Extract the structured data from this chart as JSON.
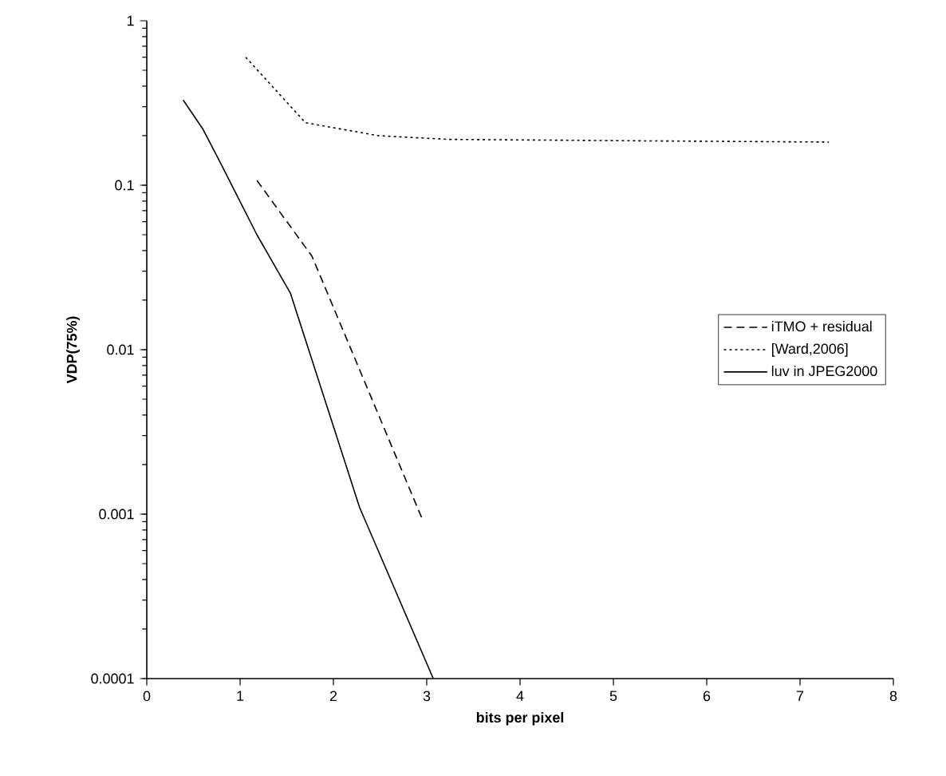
{
  "chart_data": {
    "type": "line",
    "xlabel": "bits per pixel",
    "ylabel": "VDP(75%)",
    "log": "y",
    "xlim": [
      0,
      8
    ],
    "ylim": [
      0.0001,
      1
    ],
    "xticks": [
      0,
      1,
      2,
      3,
      4,
      5,
      6,
      7,
      8
    ],
    "yticks": [
      0.0001,
      0.001,
      0.01,
      0.1,
      1
    ],
    "grid": false,
    "legend": "right",
    "marker": "none",
    "series": [
      {
        "name": "iTMO + residual",
        "color": "#000000",
        "line_style": "dashed",
        "x": [
          1.18,
          1.77,
          2.96
        ],
        "values": [
          0.107,
          0.037,
          0.00091
        ]
      },
      {
        "name": "[Ward,2006]",
        "color": "#000000",
        "line_style": "dotted",
        "x": [
          1.06,
          1.7,
          2.48,
          3.23,
          5.38,
          7.31
        ],
        "values": [
          0.6,
          0.24,
          0.2,
          0.19,
          0.186,
          0.183
        ]
      },
      {
        "name": "luv in JPEG2000",
        "color": "#000000",
        "line_style": "solid",
        "x": [
          0.39,
          0.6,
          0.78,
          1.18,
          1.54,
          2.28,
          3.07
        ],
        "values": [
          0.33,
          0.22,
          0.14,
          0.05,
          0.022,
          0.0011,
          0.0001
        ]
      }
    ]
  }
}
